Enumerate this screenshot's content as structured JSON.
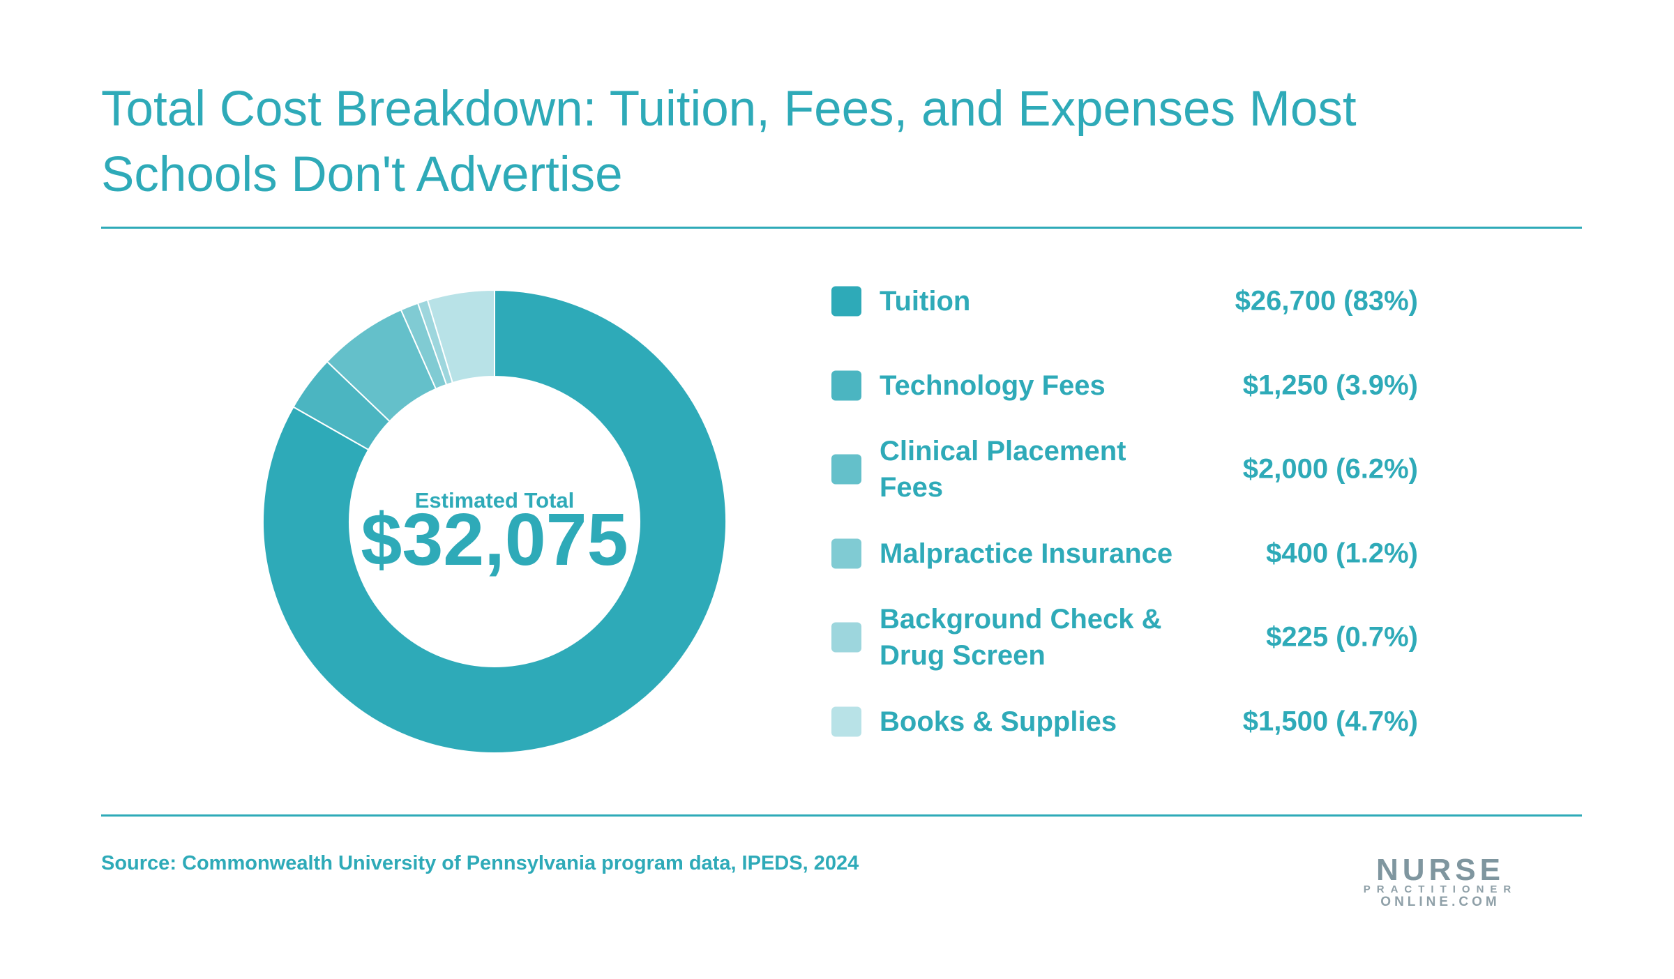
{
  "chart_data": {
    "type": "donut",
    "title": "Total Cost Breakdown: Tuition, Fees, and Expenses Most Schools Don't Advertise",
    "center_title": "Estimated Total",
    "center_value": "$32,075",
    "categories": [
      "Tuition",
      "Technology Fees",
      "Clinical Placement Fees",
      "Malpractice Insurance",
      "Background Check & Drug Screen",
      "Books & Supplies"
    ],
    "values": [
      26700,
      1250,
      2000,
      400,
      225,
      1500
    ],
    "value_labels": [
      "$26,700 (83%)",
      "$1,250 (3.9%)",
      "$2,000 (6.2%)",
      "$400 (1.2%)",
      "$225 (0.7%)",
      "$1,500 (4.7%)"
    ],
    "colors": [
      "#2eaab8",
      "#4bb5c1",
      "#64c0ca",
      "#80cbd3",
      "#9dd6dd",
      "#b8e2e7"
    ]
  },
  "footer": {
    "source": "Source: Commonwealth University of Pennsylvania program data, IPEDS, 2024",
    "logo_top": "NURSE",
    "logo_middle": "PRACTITIONER",
    "logo_bottom": "ONLINE.COM"
  }
}
